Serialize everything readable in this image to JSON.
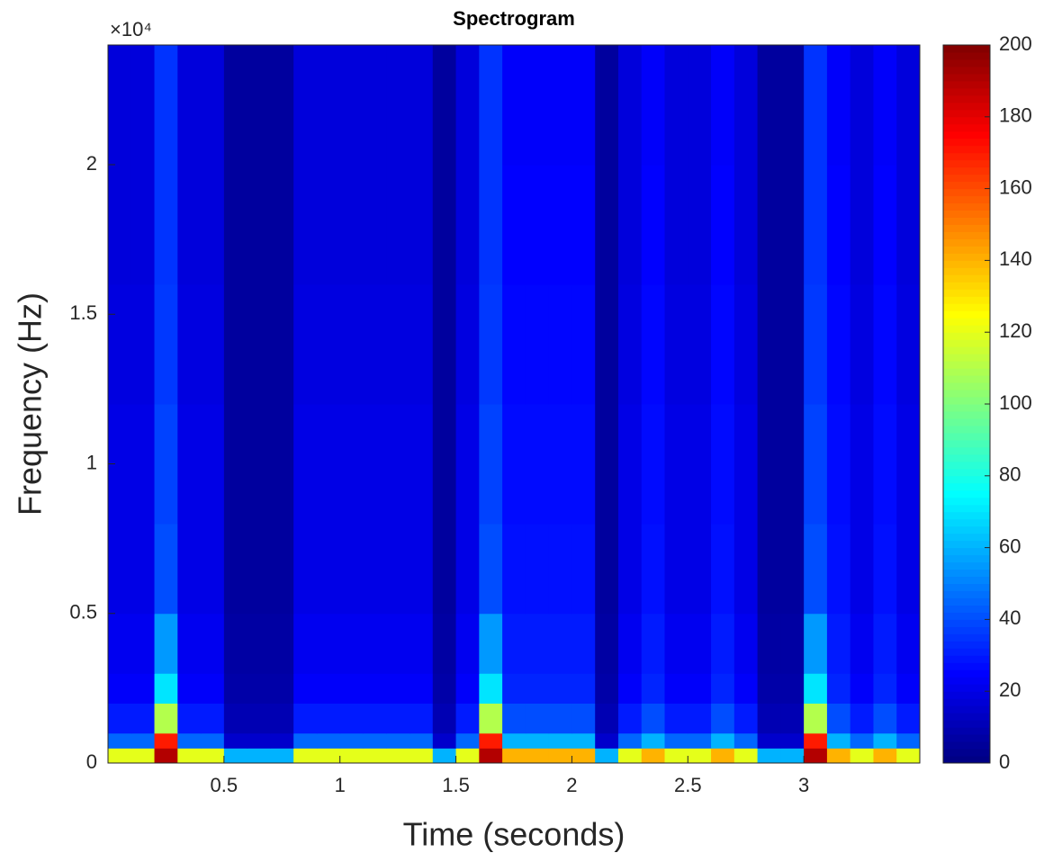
{
  "chart_data": {
    "type": "spectrogram",
    "title": "Spectrogram",
    "x_label": "Time (seconds)",
    "y_label": "Frequency (Hz)",
    "y_exponent": "×10⁴",
    "xlim": [
      0,
      3.5
    ],
    "xticks": [
      0.5,
      1,
      1.5,
      2,
      2.5,
      3
    ],
    "ylim": [
      0,
      24000
    ],
    "yticks": [
      {
        "value": 0,
        "label": "0"
      },
      {
        "value": 5000,
        "label": "0.5"
      },
      {
        "value": 10000,
        "label": "1"
      },
      {
        "value": 15000,
        "label": "1.5"
      },
      {
        "value": 20000,
        "label": "2"
      }
    ],
    "colormap": "jet",
    "clim": [
      0,
      200
    ],
    "cticks": [
      0,
      20,
      40,
      60,
      80,
      100,
      120,
      140,
      160,
      180,
      200
    ],
    "xbins": [
      0,
      0.1,
      0.2,
      0.3,
      0.4,
      0.5,
      0.6,
      0.7,
      0.8,
      0.9,
      1,
      1.1,
      1.2,
      1.3,
      1.4,
      1.5,
      1.6,
      1.7,
      1.8,
      1.9,
      2,
      2.1,
      2.2,
      2.3,
      2.4,
      2.5,
      2.6,
      2.7,
      2.8,
      2.9,
      3,
      3.1,
      3.2,
      3.3,
      3.4,
      3.5
    ],
    "ybins": [
      0,
      500,
      1000,
      2000,
      3000,
      5000,
      8000,
      12000,
      16000,
      20000,
      24000
    ],
    "values": [
      [
        120,
        120,
        190,
        120,
        120,
        60,
        60,
        60,
        120,
        120,
        120,
        120,
        120,
        120,
        60,
        120,
        190,
        140,
        140,
        140,
        140,
        60,
        120,
        140,
        120,
        120,
        140,
        120,
        60,
        60,
        190,
        140,
        120,
        140,
        120
      ],
      [
        45,
        45,
        170,
        45,
        45,
        15,
        15,
        15,
        45,
        45,
        45,
        45,
        45,
        45,
        15,
        45,
        170,
        60,
        60,
        60,
        60,
        15,
        45,
        60,
        45,
        45,
        60,
        45,
        15,
        15,
        170,
        60,
        45,
        60,
        45
      ],
      [
        30,
        30,
        110,
        30,
        30,
        10,
        10,
        10,
        30,
        30,
        30,
        30,
        30,
        30,
        10,
        30,
        110,
        40,
        40,
        40,
        40,
        10,
        30,
        40,
        30,
        30,
        40,
        30,
        10,
        10,
        110,
        40,
        30,
        40,
        30
      ],
      [
        24,
        24,
        70,
        24,
        24,
        8,
        8,
        8,
        24,
        24,
        24,
        24,
        24,
        24,
        8,
        24,
        70,
        32,
        32,
        32,
        32,
        8,
        24,
        32,
        24,
        24,
        32,
        24,
        8,
        8,
        70,
        32,
        24,
        32,
        24
      ],
      [
        22,
        22,
        55,
        22,
        22,
        7,
        7,
        7,
        22,
        22,
        22,
        22,
        22,
        22,
        7,
        22,
        55,
        30,
        30,
        30,
        30,
        7,
        22,
        30,
        22,
        22,
        30,
        22,
        7,
        7,
        55,
        30,
        22,
        30,
        22
      ],
      [
        20,
        20,
        40,
        20,
        20,
        6,
        6,
        6,
        20,
        20,
        20,
        20,
        20,
        20,
        6,
        20,
        40,
        28,
        28,
        28,
        28,
        6,
        20,
        28,
        20,
        20,
        28,
        20,
        6,
        6,
        40,
        28,
        20,
        28,
        20
      ],
      [
        20,
        20,
        38,
        20,
        20,
        6,
        6,
        6,
        20,
        20,
        20,
        20,
        20,
        20,
        6,
        20,
        38,
        27,
        27,
        27,
        27,
        6,
        20,
        27,
        20,
        20,
        27,
        20,
        6,
        6,
        38,
        27,
        20,
        27,
        20
      ],
      [
        19,
        19,
        36,
        19,
        19,
        6,
        6,
        6,
        19,
        19,
        19,
        19,
        19,
        19,
        6,
        19,
        36,
        26,
        26,
        26,
        26,
        6,
        19,
        26,
        19,
        19,
        26,
        19,
        6,
        6,
        36,
        26,
        19,
        26,
        19
      ],
      [
        18,
        18,
        35,
        18,
        18,
        6,
        6,
        6,
        18,
        18,
        18,
        18,
        18,
        18,
        6,
        18,
        35,
        25,
        25,
        25,
        25,
        6,
        18,
        25,
        18,
        18,
        25,
        18,
        6,
        6,
        35,
        25,
        18,
        25,
        18
      ],
      [
        18,
        18,
        35,
        18,
        18,
        6,
        6,
        6,
        18,
        18,
        18,
        18,
        18,
        18,
        6,
        18,
        35,
        24,
        24,
        24,
        24,
        6,
        18,
        24,
        18,
        18,
        24,
        18,
        6,
        6,
        35,
        24,
        18,
        24,
        18
      ]
    ]
  }
}
